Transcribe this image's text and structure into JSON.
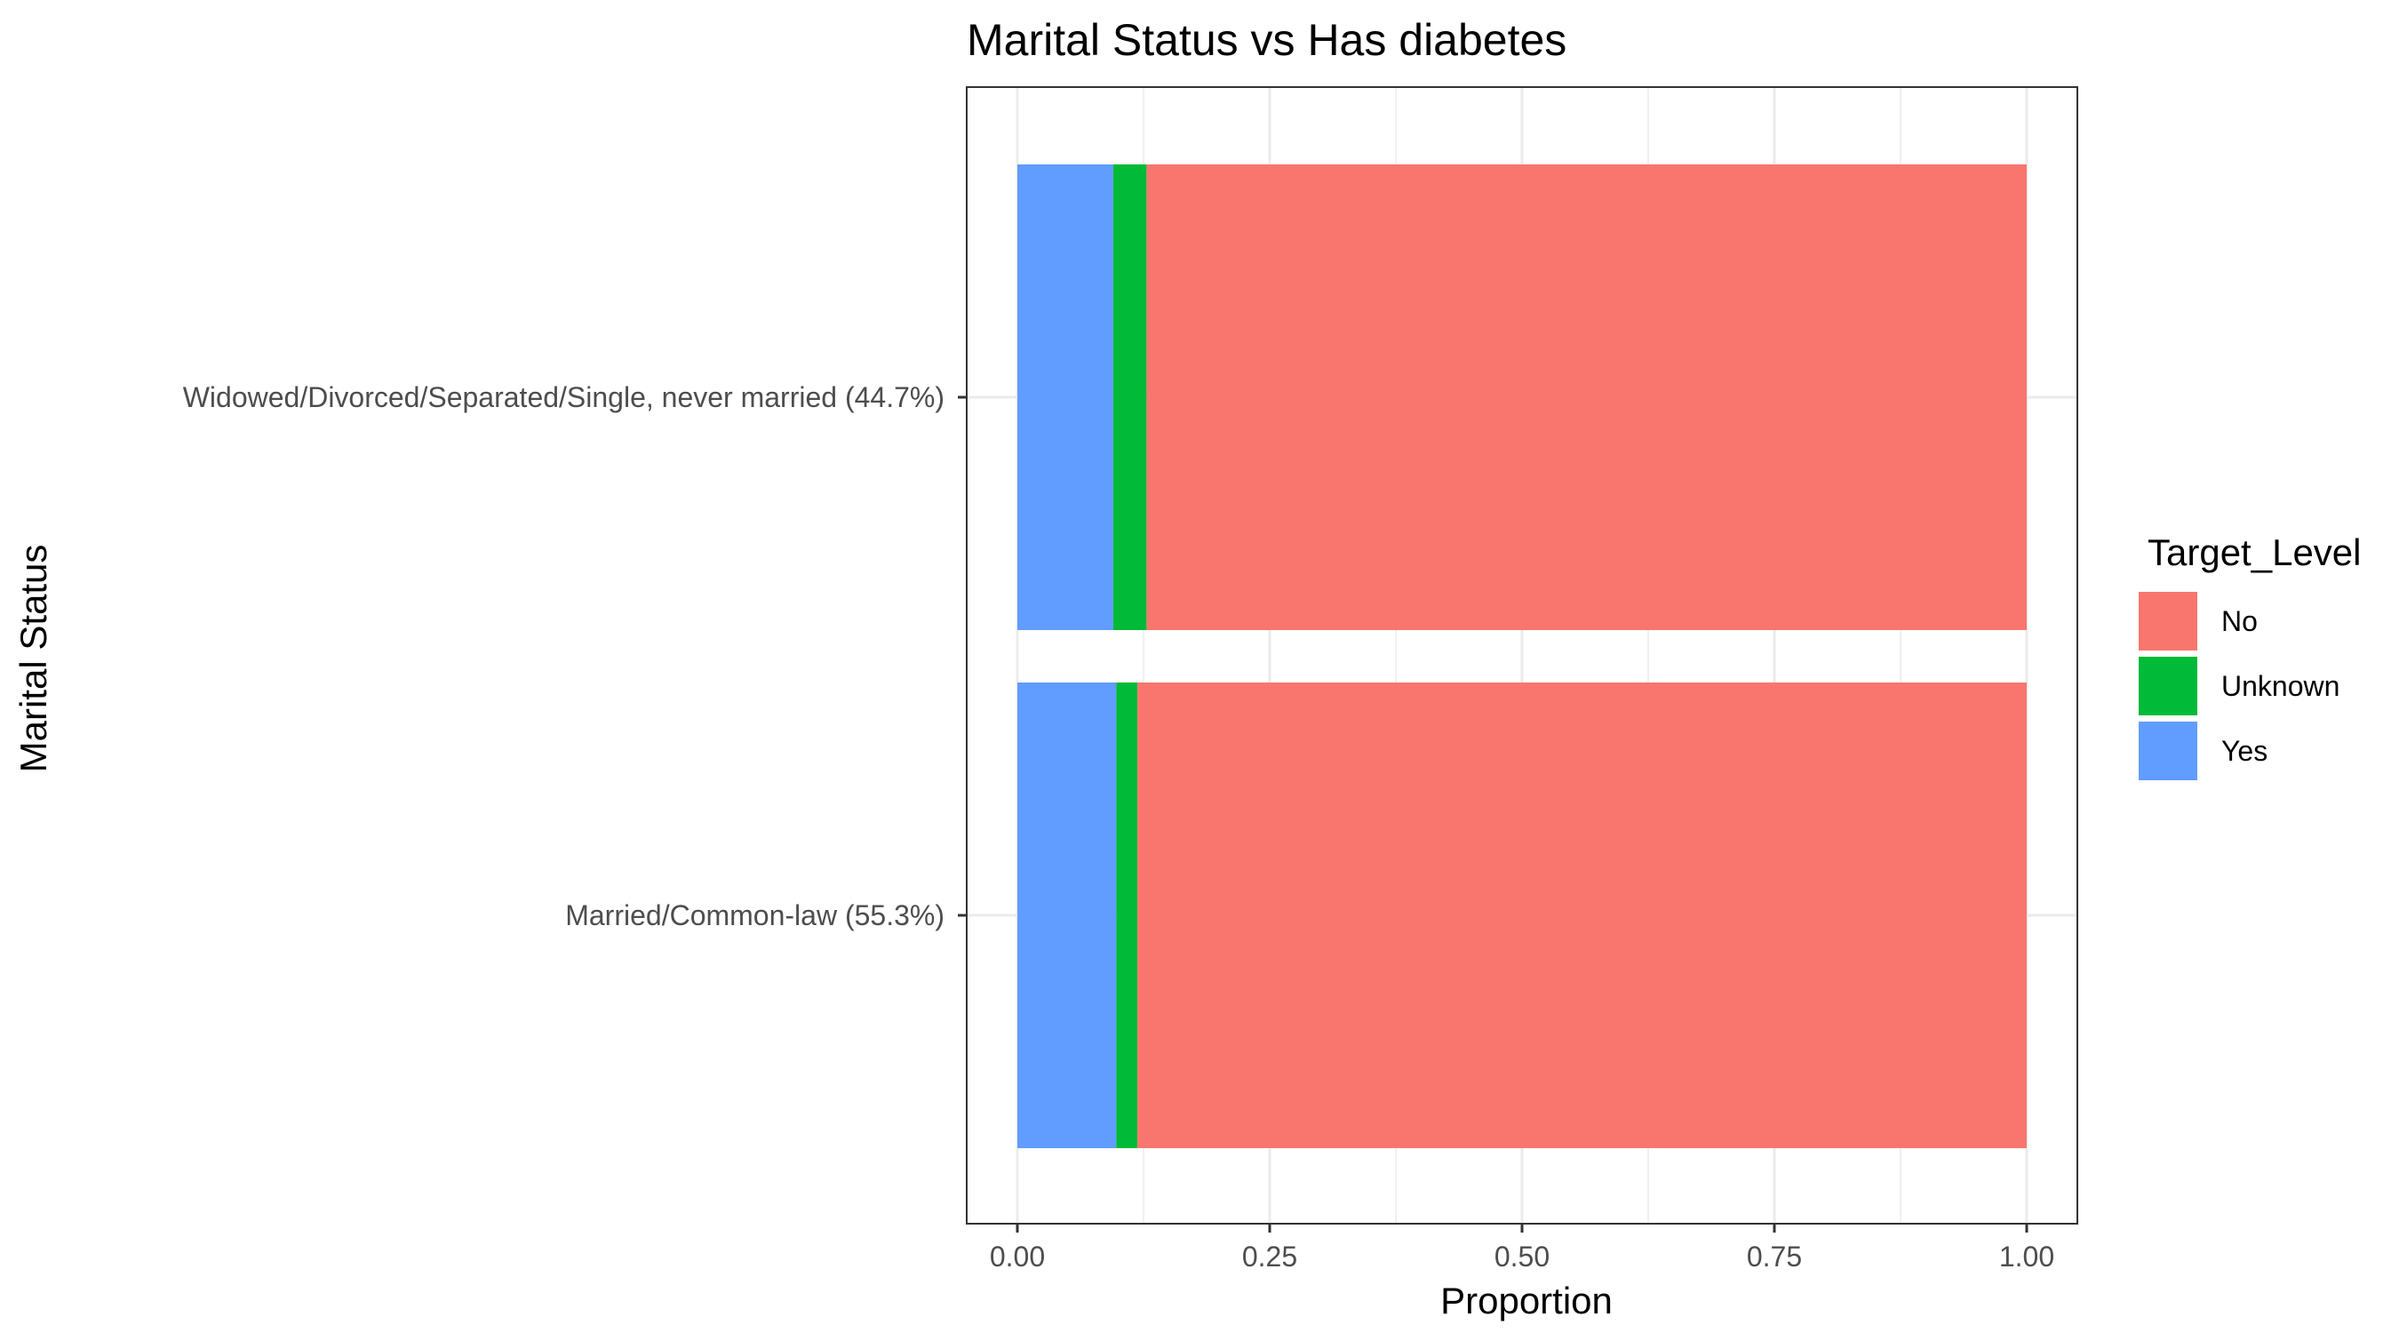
{
  "chart_data": {
    "type": "bar",
    "orientation": "horizontal",
    "stacked": true,
    "title": "Marital Status vs Has diabetes",
    "xlabel": "Proportion",
    "ylabel": "Marital Status",
    "xlim": [
      0,
      1
    ],
    "xticks": [
      "0.00",
      "0.25",
      "0.50",
      "0.75",
      "1.00"
    ],
    "categories": [
      "Widowed/Divorced/Separated/Single, never married (44.7%)",
      "Married/Common-law (55.3%)"
    ],
    "series": [
      {
        "name": "Yes",
        "color": "#619CFF",
        "values": [
          0.095,
          0.098
        ]
      },
      {
        "name": "Unknown",
        "color": "#00BA38",
        "values": [
          0.033,
          0.021
        ]
      },
      {
        "name": "No",
        "color": "#F8766D",
        "values": [
          0.872,
          0.881
        ]
      }
    ],
    "legend": {
      "title": "Target_Level",
      "position": "right",
      "items": [
        {
          "label": "No",
          "color": "#F8766D"
        },
        {
          "label": "Unknown",
          "color": "#00BA38"
        },
        {
          "label": "Yes",
          "color": "#619CFF"
        }
      ]
    },
    "grid": true
  }
}
